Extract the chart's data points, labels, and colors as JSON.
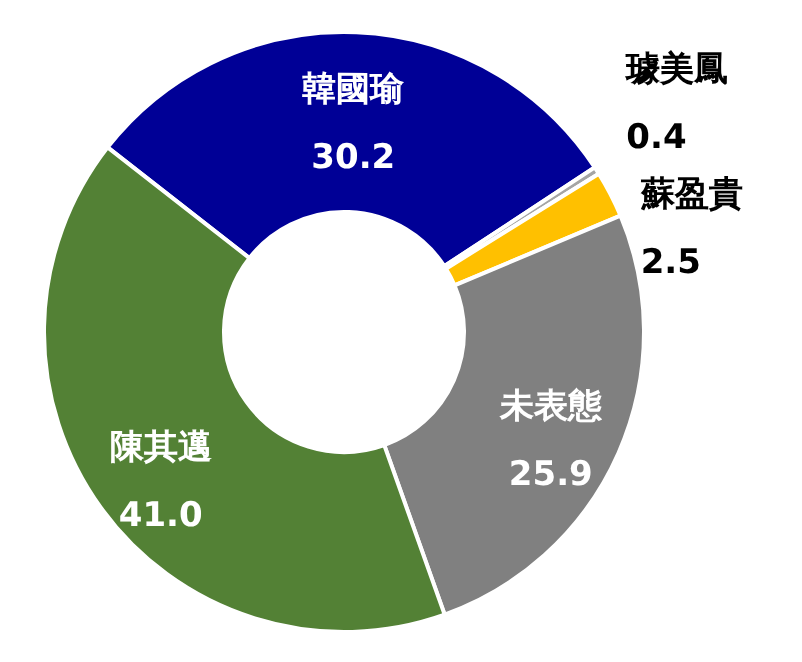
{
  "chart_data": {
    "type": "donut",
    "categories": [
      "韓國瑜",
      "璩美鳳",
      "蘇盈貴",
      "未表態",
      "陳其邁"
    ],
    "values": [
      30.2,
      0.4,
      2.5,
      25.9,
      41.0
    ],
    "colors": [
      "#000096",
      "#a5a5a5",
      "#ffc000",
      "#808080",
      "#538135"
    ],
    "value_labels": [
      "30.2",
      "0.4",
      "2.5",
      "25.9",
      "41.0"
    ]
  }
}
